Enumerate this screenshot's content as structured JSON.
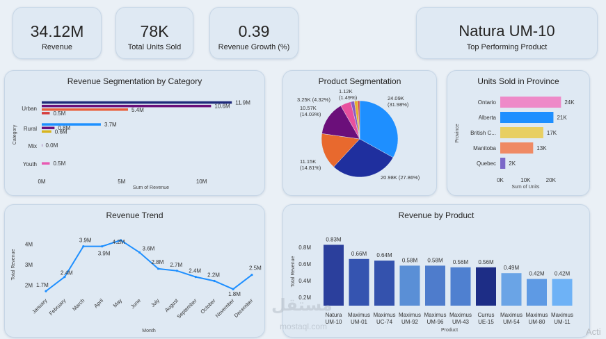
{
  "kpis": [
    {
      "value": "34.12M",
      "label": "Revenue"
    },
    {
      "value": "78K",
      "label": "Total Units Sold"
    },
    {
      "value": "0.39",
      "label": "Revenue Growth (%)"
    }
  ],
  "top_product": {
    "value": "Natura UM-10",
    "label": "Top Performing Product"
  },
  "watermark": {
    "arabic": "مستقل",
    "latin": "mostaql.com"
  },
  "overlay_text": "Acti",
  "chart_data": [
    {
      "id": "category",
      "type": "bar",
      "orientation": "horizontal",
      "title": "Revenue Segmentation by Category",
      "xlabel": "Sum of Revenue",
      "ylabel": "Category",
      "categories": [
        "Urban",
        "Rural",
        "Mix",
        "Youth"
      ],
      "xticks": [
        "0M",
        "5M",
        "10M"
      ],
      "xlim": [
        0,
        12.5
      ],
      "series": [
        {
          "color": "#1f2a7a",
          "values": [
            11.9,
            null,
            null,
            null
          ],
          "labels": [
            "11.9M",
            "",
            "",
            ""
          ]
        },
        {
          "color": "#1e90ff",
          "values": [
            null,
            3.7,
            null,
            null
          ],
          "labels": [
            "",
            "3.7M",
            "",
            ""
          ]
        },
        {
          "color": "#6a0e7a",
          "values": [
            10.6,
            0.8,
            0.0,
            null
          ],
          "labels": [
            "10.6M",
            "0.8M",
            "0.0M",
            ""
          ]
        },
        {
          "color": "#e8603c",
          "values": [
            5.4,
            null,
            null,
            null
          ],
          "labels": [
            "5.4M",
            "",
            "",
            ""
          ]
        },
        {
          "color": "#d8b41e",
          "values": [
            null,
            0.6,
            null,
            null
          ],
          "labels": [
            "",
            "0.6M",
            "",
            ""
          ]
        },
        {
          "color": "#d63e3e",
          "values": [
            0.5,
            null,
            null,
            null
          ],
          "labels": [
            "0.5M",
            "",
            "",
            ""
          ]
        },
        {
          "color": "#e85ab2",
          "values": [
            null,
            null,
            null,
            0.5
          ],
          "labels": [
            "",
            "",
            "",
            "0.5M"
          ]
        }
      ]
    },
    {
      "id": "segmentation",
      "type": "pie",
      "title": "Product Segmentation",
      "slices": [
        {
          "value": 24.09,
          "label": "24.09K",
          "pct": "(31.98%)",
          "color": "#1e8fff"
        },
        {
          "value": 20.98,
          "label": "20.98K (27.86%)",
          "pct": "",
          "color": "#1f2f9e"
        },
        {
          "value": 11.15,
          "label": "11.15K",
          "pct": "(14.81%)",
          "color": "#e8692e"
        },
        {
          "value": 10.57,
          "label": "10.57K",
          "pct": "(14.03%)",
          "color": "#6b0f7a"
        },
        {
          "value": 3.25,
          "label": "3.25K (4.32%)",
          "pct": "",
          "color": "#e8509e"
        },
        {
          "value": 1.12,
          "label": "1.12K",
          "pct": "(1.49%)",
          "color": "#8a5cc0"
        },
        {
          "value": 1.08,
          "label": "",
          "pct": "",
          "color": "#e8b12a"
        },
        {
          "value": 0.55,
          "label": "",
          "pct": "",
          "color": "#d63e3e"
        }
      ]
    },
    {
      "id": "province",
      "type": "bar",
      "orientation": "horizontal",
      "title": "Units Sold in Province",
      "xlabel": "Sum of Units",
      "ylabel": "Province",
      "categories": [
        "Ontario",
        "Alberta",
        "British C...",
        "Manitoba",
        "Quebec"
      ],
      "values": [
        24,
        21,
        17,
        13,
        2
      ],
      "labels": [
        "24K",
        "21K",
        "17K",
        "13K",
        "2K"
      ],
      "colors": [
        "#ee8ac8",
        "#1e8fff",
        "#e8cf62",
        "#ef8a64",
        "#7b68c8"
      ],
      "xticks": [
        "0K",
        "10K",
        "20K"
      ],
      "xlim": [
        0,
        25
      ]
    },
    {
      "id": "trend",
      "type": "line",
      "title": "Revenue Trend",
      "xlabel": "Month",
      "ylabel": "Total Revenue",
      "categories": [
        "January",
        "February",
        "March",
        "April",
        "May",
        "June",
        "July",
        "August",
        "September",
        "October",
        "November",
        "December"
      ],
      "values": [
        1.7,
        2.4,
        3.9,
        3.9,
        4.2,
        3.6,
        2.8,
        2.7,
        2.4,
        2.2,
        1.8,
        2.5
      ],
      "labels": [
        "1.7M",
        "2.4M",
        "3.9M",
        "3.9M",
        "4.2M",
        "3.6M",
        "2.8M",
        "2.7M",
        "2.4M",
        "2.2M",
        "1.8M",
        "2.5M"
      ],
      "yticks": [
        "2M",
        "3M",
        "4M"
      ],
      "ylim": [
        1.5,
        4.5
      ],
      "color": "#1e8fff"
    },
    {
      "id": "product",
      "type": "bar",
      "title": "Revenue by Product",
      "xlabel": "Product",
      "ylabel": "Total Revenue",
      "categories": [
        [
          "Natura",
          "UM-10"
        ],
        [
          "Maximus",
          "UM-01"
        ],
        [
          "Maximus",
          "UC-74"
        ],
        [
          "Maximus",
          "UM-92"
        ],
        [
          "Maximus",
          "UM-96"
        ],
        [
          "Maximus",
          "UM-43"
        ],
        [
          "Currus",
          "UE-15"
        ],
        [
          "Maximus",
          "UM-54"
        ],
        [
          "Maximus",
          "UM-80"
        ],
        [
          "Maximus",
          "UM-11"
        ]
      ],
      "values": [
        0.83,
        0.66,
        0.64,
        0.58,
        0.58,
        0.56,
        0.56,
        0.49,
        0.42,
        0.42
      ],
      "labels": [
        "0.83M",
        "0.66M",
        "0.64M",
        "0.58M",
        "0.58M",
        "0.56M",
        "0.56M",
        "0.49M",
        "0.42M",
        "0.42M"
      ],
      "colors": [
        "#2b3f9c",
        "#3554b0",
        "#3452ad",
        "#5a8fd6",
        "#4e7ccc",
        "#4f80d0",
        "#1d2d86",
        "#6aa4e6",
        "#5e9ae4",
        "#6eb2f6"
      ],
      "yticks": [
        "0.2M",
        "0.4M",
        "0.6M",
        "0.8M"
      ],
      "ylim": [
        0.1,
        0.9
      ]
    }
  ]
}
